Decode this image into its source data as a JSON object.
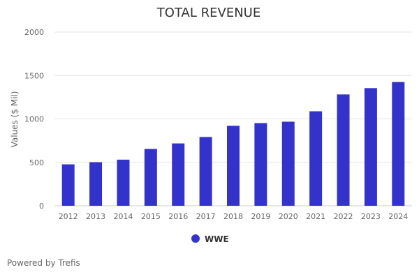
{
  "chart_data": {
    "type": "bar",
    "title": "TOTAL REVENUE",
    "xlabel": "",
    "ylabel": "Values ($ Mil)",
    "ylim": [
      0,
      2000
    ],
    "yticks": [
      0,
      500,
      1000,
      1500,
      2000
    ],
    "grid": true,
    "legend_position": "bottom-center",
    "categories": [
      "2012",
      "2013",
      "2014",
      "2015",
      "2016",
      "2017",
      "2018",
      "2019",
      "2020",
      "2021",
      "2022",
      "2023",
      "2024"
    ],
    "series": [
      {
        "name": "WWE",
        "color": "#3333cc",
        "values": [
          477,
          502,
          531,
          654,
          718,
          792,
          921,
          952,
          968,
          1088,
          1282,
          1355,
          1425
        ]
      }
    ]
  },
  "footer": {
    "credit": "Powered by Trefis"
  }
}
